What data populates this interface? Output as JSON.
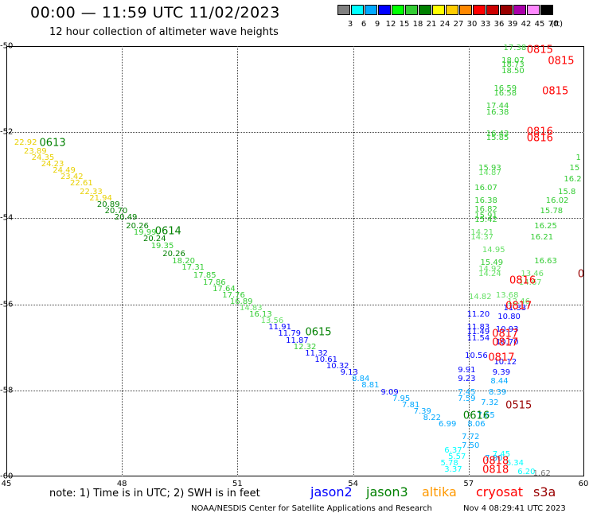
{
  "header": {
    "title": "00:00 — 11:59 UTC 11/02/2023",
    "subtitle": "12 hour collection of altimeter wave heights"
  },
  "colorscale": {
    "unit": "(ft)",
    "colors": [
      "#808080",
      "#00ffff",
      "#00a8ff",
      "#0000ff",
      "#00ff00",
      "#33cc33",
      "#008000",
      "#ffff00",
      "#ffcc00",
      "#ff8800",
      "#ff0000",
      "#cc0000",
      "#990000",
      "#aa00aa",
      "#ff88ff",
      "#000000"
    ],
    "labels": [
      "3",
      "6",
      "9",
      "12",
      "15",
      "18",
      "21",
      "24",
      "27",
      "30",
      "33",
      "36",
      "39",
      "42",
      "45",
      "70"
    ]
  },
  "axes": {
    "x_ticks": [
      "45",
      "48",
      "51",
      "54",
      "57",
      "60"
    ],
    "y_ticks": [
      "-50",
      "-52",
      "-54",
      "-56",
      "-58",
      "-60"
    ],
    "x_range": [
      45,
      60
    ],
    "y_range": [
      -60,
      -50
    ],
    "grid": true
  },
  "map_points": [
    {
      "lon": 45.5,
      "lat": -52.25,
      "text": "22.92",
      "color": "#e8d000"
    },
    {
      "lon": 45.75,
      "lat": -52.45,
      "text": "23.89",
      "color": "#e8d000"
    },
    {
      "lon": 45.95,
      "lat": -52.6,
      "text": "24.35",
      "color": "#e8d000"
    },
    {
      "lon": 46.2,
      "lat": -52.75,
      "text": "24.23",
      "color": "#e8d000"
    },
    {
      "lon": 46.5,
      "lat": -52.9,
      "text": "24.49",
      "color": "#e8d000"
    },
    {
      "lon": 46.7,
      "lat": -53.05,
      "text": "23.42",
      "color": "#e8d000"
    },
    {
      "lon": 46.95,
      "lat": -53.2,
      "text": "22.61",
      "color": "#e8d000"
    },
    {
      "lon": 47.2,
      "lat": -53.4,
      "text": "22.33",
      "color": "#e8d000"
    },
    {
      "lon": 47.45,
      "lat": -53.55,
      "text": "21.94",
      "color": "#e8d000"
    },
    {
      "lon": 47.65,
      "lat": -53.7,
      "text": "20.89",
      "color": "#008000"
    },
    {
      "lon": 47.85,
      "lat": -53.85,
      "text": "20.70",
      "color": "#008000"
    },
    {
      "lon": 48.1,
      "lat": -54.0,
      "text": "20.49",
      "color": "#008000"
    },
    {
      "lon": 48.4,
      "lat": -54.2,
      "text": "20.26",
      "color": "#008000"
    },
    {
      "lon": 48.6,
      "lat": -54.35,
      "text": "19.99",
      "color": "#33cc33"
    },
    {
      "lon": 48.85,
      "lat": -54.5,
      "text": "20.24",
      "color": "#008000"
    },
    {
      "lon": 49.05,
      "lat": -54.65,
      "text": "19.35",
      "color": "#33cc33"
    },
    {
      "lon": 49.35,
      "lat": -54.85,
      "text": "20.26",
      "color": "#008000"
    },
    {
      "lon": 49.6,
      "lat": -55.0,
      "text": "18.20",
      "color": "#33cc33"
    },
    {
      "lon": 49.85,
      "lat": -55.15,
      "text": "17.31",
      "color": "#33cc33"
    },
    {
      "lon": 50.15,
      "lat": -55.35,
      "text": "17.85",
      "color": "#33cc33"
    },
    {
      "lon": 50.4,
      "lat": -55.5,
      "text": "17.86",
      "color": "#33cc33"
    },
    {
      "lon": 50.65,
      "lat": -55.65,
      "text": "17.64",
      "color": "#33cc33"
    },
    {
      "lon": 50.9,
      "lat": -55.8,
      "text": "17.76",
      "color": "#33cc33"
    },
    {
      "lon": 51.1,
      "lat": -55.95,
      "text": "16.89",
      "color": "#33cc33"
    },
    {
      "lon": 51.35,
      "lat": -56.1,
      "text": "14.83",
      "color": "#66e066"
    },
    {
      "lon": 51.6,
      "lat": -56.25,
      "text": "16.13",
      "color": "#33cc33"
    },
    {
      "lon": 51.9,
      "lat": -56.4,
      "text": "13.56",
      "color": "#66e066"
    },
    {
      "lon": 52.1,
      "lat": -56.55,
      "text": "11.91",
      "color": "#0000ff"
    },
    {
      "lon": 52.35,
      "lat": -56.7,
      "text": "11.79",
      "color": "#0000ff"
    },
    {
      "lon": 52.55,
      "lat": -56.85,
      "text": "11.87",
      "color": "#0000ff"
    },
    {
      "lon": 52.75,
      "lat": -57.0,
      "text": "12.32",
      "color": "#33cc33"
    },
    {
      "lon": 53.05,
      "lat": -57.15,
      "text": "11.32",
      "color": "#0000ff"
    },
    {
      "lon": 53.3,
      "lat": -57.3,
      "text": "10.61",
      "color": "#0000ff"
    },
    {
      "lon": 53.6,
      "lat": -57.45,
      "text": "10.32",
      "color": "#0000ff"
    },
    {
      "lon": 53.9,
      "lat": -57.6,
      "text": "9.13",
      "color": "#0000ff"
    },
    {
      "lon": 54.2,
      "lat": -57.75,
      "text": "8.84",
      "color": "#00a8ff"
    },
    {
      "lon": 54.45,
      "lat": -57.9,
      "text": "8.81",
      "color": "#00a8ff"
    },
    {
      "lon": 54.95,
      "lat": -58.05,
      "text": "9.09",
      "color": "#0000ff"
    },
    {
      "lon": 55.25,
      "lat": -58.2,
      "text": "7.95",
      "color": "#00a8ff"
    },
    {
      "lon": 55.5,
      "lat": -58.35,
      "text": "7.81",
      "color": "#00a8ff"
    },
    {
      "lon": 55.8,
      "lat": -58.5,
      "text": "7.39",
      "color": "#00a8ff"
    },
    {
      "lon": 56.05,
      "lat": -58.65,
      "text": "8.22",
      "color": "#00a8ff"
    },
    {
      "lon": 56.45,
      "lat": -58.8,
      "text": "6.99",
      "color": "#00a8ff"
    },
    {
      "lon": 56.6,
      "lat": -59.4,
      "text": "6.37",
      "color": "#00ffff"
    },
    {
      "lon": 56.7,
      "lat": -59.55,
      "text": "5.57",
      "color": "#00ffff"
    },
    {
      "lon": 56.5,
      "lat": -59.7,
      "text": "5.78",
      "color": "#00ffff"
    },
    {
      "lon": 56.6,
      "lat": -59.85,
      "text": "3.37",
      "color": "#00ffff"
    },
    {
      "lon": 57.05,
      "lat": -59.3,
      "text": "7.50",
      "color": "#00a8ff"
    },
    {
      "lon": 57.05,
      "lat": -59.1,
      "text": "7.72",
      "color": "#00a8ff"
    },
    {
      "lon": 57.2,
      "lat": -58.8,
      "text": "8.06",
      "color": "#00a8ff"
    },
    {
      "lon": 57.45,
      "lat": -58.6,
      "text": "7.65",
      "color": "#00a8ff"
    },
    {
      "lon": 57.55,
      "lat": -58.3,
      "text": "7.32",
      "color": "#00a8ff"
    },
    {
      "lon": 56.95,
      "lat": -58.2,
      "text": "7.59",
      "color": "#00a8ff"
    },
    {
      "lon": 56.95,
      "lat": -58.05,
      "text": "7.45",
      "color": "#00a8ff"
    },
    {
      "lon": 57.75,
      "lat": -58.05,
      "text": "8.39",
      "color": "#00a8ff"
    },
    {
      "lon": 57.8,
      "lat": -57.8,
      "text": "8.44",
      "color": "#00a8ff"
    },
    {
      "lon": 57.85,
      "lat": -57.6,
      "text": "9.39",
      "color": "#0000ff"
    },
    {
      "lon": 56.95,
      "lat": -57.75,
      "text": "9.23",
      "color": "#0000ff"
    },
    {
      "lon": 56.95,
      "lat": -57.55,
      "text": "9.91",
      "color": "#0000ff"
    },
    {
      "lon": 57.95,
      "lat": -57.35,
      "text": "10.12",
      "color": "#0000ff"
    },
    {
      "lon": 57.2,
      "lat": -57.2,
      "text": "10.56",
      "color": "#0000ff"
    },
    {
      "lon": 57.25,
      "lat": -56.8,
      "text": "11.54",
      "color": "#0000ff"
    },
    {
      "lon": 57.25,
      "lat": -56.65,
      "text": "11.49",
      "color": "#0000ff"
    },
    {
      "lon": 57.25,
      "lat": -56.55,
      "text": "11.83",
      "color": "#0000ff"
    },
    {
      "lon": 57.25,
      "lat": -56.25,
      "text": "11.20",
      "color": "#0000ff"
    },
    {
      "lon": 58.05,
      "lat": -56.3,
      "text": "10.80",
      "color": "#0000ff"
    },
    {
      "lon": 58.0,
      "lat": -56.6,
      "text": "10.93",
      "color": "#0000ff"
    },
    {
      "lon": 58.0,
      "lat": -56.9,
      "text": "10.70",
      "color": "#0000ff"
    },
    {
      "lon": 58.2,
      "lat": -56.1,
      "text": "11.33",
      "color": "#0000ff"
    },
    {
      "lon": 57.3,
      "lat": -55.85,
      "text": "14.82",
      "color": "#66e066"
    },
    {
      "lon": 58.0,
      "lat": -55.8,
      "text": "13.68",
      "color": "#66e066"
    },
    {
      "lon": 58.3,
      "lat": -55.95,
      "text": "12.46",
      "color": "#66e066"
    },
    {
      "lon": 58.6,
      "lat": -55.5,
      "text": "14.67",
      "color": "#66e066"
    },
    {
      "lon": 58.65,
      "lat": -55.3,
      "text": "13.46",
      "color": "#66e066"
    },
    {
      "lon": 57.55,
      "lat": -55.2,
      "text": "14.92",
      "color": "#66e066"
    },
    {
      "lon": 57.55,
      "lat": -55.3,
      "text": "14.24",
      "color": "#66e066"
    },
    {
      "lon": 57.6,
      "lat": -55.05,
      "text": "15.49",
      "color": "#33cc33"
    },
    {
      "lon": 57.65,
      "lat": -54.75,
      "text": "14.95",
      "color": "#66e066"
    },
    {
      "lon": 57.35,
      "lat": -54.35,
      "text": "14.21",
      "color": "#66e066"
    },
    {
      "lon": 57.35,
      "lat": -54.45,
      "text": "14.37",
      "color": "#66e066"
    },
    {
      "lon": 57.45,
      "lat": -54.05,
      "text": "15.42",
      "color": "#33cc33"
    },
    {
      "lon": 57.45,
      "lat": -53.95,
      "text": "15.91",
      "color": "#33cc33"
    },
    {
      "lon": 57.45,
      "lat": -53.8,
      "text": "16.82",
      "color": "#33cc33"
    },
    {
      "lon": 57.45,
      "lat": -53.6,
      "text": "16.38",
      "color": "#33cc33"
    },
    {
      "lon": 57.45,
      "lat": -53.3,
      "text": "16.07",
      "color": "#33cc33"
    },
    {
      "lon": 57.55,
      "lat": -52.95,
      "text": "14.87",
      "color": "#66e066"
    },
    {
      "lon": 57.55,
      "lat": -52.85,
      "text": "15.93",
      "color": "#33cc33"
    },
    {
      "lon": 57.75,
      "lat": -52.15,
      "text": "15.85",
      "color": "#33cc33"
    },
    {
      "lon": 57.75,
      "lat": -52.05,
      "text": "16.43",
      "color": "#33cc33"
    },
    {
      "lon": 57.75,
      "lat": -51.55,
      "text": "16.38",
      "color": "#33cc33"
    },
    {
      "lon": 57.75,
      "lat": -51.4,
      "text": "17.44",
      "color": "#33cc33"
    },
    {
      "lon": 57.95,
      "lat": -51.1,
      "text": "16.58",
      "color": "#33cc33"
    },
    {
      "lon": 57.95,
      "lat": -51.0,
      "text": "16.59",
      "color": "#33cc33"
    },
    {
      "lon": 58.15,
      "lat": -50.6,
      "text": "18.50",
      "color": "#33cc33"
    },
    {
      "lon": 58.15,
      "lat": -50.45,
      "text": "18.73",
      "color": "#33cc33"
    },
    {
      "lon": 58.15,
      "lat": -50.35,
      "text": "18.07",
      "color": "#33cc33"
    },
    {
      "lon": 58.2,
      "lat": -50.05,
      "text": "17.38",
      "color": "#33cc33"
    },
    {
      "lon": 58.9,
      "lat": -54.45,
      "text": "16.21",
      "color": "#33cc33"
    },
    {
      "lon": 59.0,
      "lat": -54.2,
      "text": "16.25",
      "color": "#33cc33"
    },
    {
      "lon": 59.15,
      "lat": -53.85,
      "text": "15.78",
      "color": "#33cc33"
    },
    {
      "lon": 59.3,
      "lat": -53.6,
      "text": "16.02",
      "color": "#33cc33"
    },
    {
      "lon": 59.55,
      "lat": -53.4,
      "text": "15.8",
      "color": "#33cc33"
    },
    {
      "lon": 59.7,
      "lat": -53.1,
      "text": "16.2",
      "color": "#33cc33"
    },
    {
      "lon": 59.75,
      "lat": -52.85,
      "text": "15",
      "color": "#33cc33"
    },
    {
      "lon": 59.85,
      "lat": -52.6,
      "text": "1",
      "color": "#33cc33"
    },
    {
      "lon": 59.0,
      "lat": -55.0,
      "text": "16.63",
      "color": "#33cc33"
    },
    {
      "lon": 57.65,
      "lat": -59.6,
      "text": "7.80",
      "color": "#00a8ff"
    },
    {
      "lon": 57.85,
      "lat": -59.5,
      "text": "7.45",
      "color": "#00ffff"
    },
    {
      "lon": 58.2,
      "lat": -59.7,
      "text": "6.34",
      "color": "#00ffff"
    },
    {
      "lon": 58.5,
      "lat": -59.9,
      "text": "6.20",
      "color": "#00ffff"
    },
    {
      "lon": 58.9,
      "lat": -59.95,
      "text": "1.62",
      "color": "#808080"
    }
  ],
  "pass_labels": [
    {
      "lon": 46.2,
      "lat": -52.25,
      "text": "0613",
      "color": "#008000"
    },
    {
      "lon": 49.2,
      "lat": -54.3,
      "text": "0614",
      "color": "#008000"
    },
    {
      "lon": 53.1,
      "lat": -56.65,
      "text": "0615",
      "color": "#008000"
    },
    {
      "lon": 57.2,
      "lat": -58.6,
      "text": "0616",
      "color": "#008000"
    },
    {
      "lon": 58.85,
      "lat": -50.1,
      "text": "0815",
      "color": "#ff0000"
    },
    {
      "lon": 59.4,
      "lat": -50.35,
      "text": "0815",
      "color": "#ff0000"
    },
    {
      "lon": 59.25,
      "lat": -51.05,
      "text": "0815",
      "color": "#ff0000"
    },
    {
      "lon": 58.85,
      "lat": -52.0,
      "text": "0816",
      "color": "#ff0000"
    },
    {
      "lon": 58.85,
      "lat": -52.15,
      "text": "0816",
      "color": "#ff0000"
    },
    {
      "lon": 58.4,
      "lat": -55.45,
      "text": "0816",
      "color": "#ff0000"
    },
    {
      "lon": 58.3,
      "lat": -56.05,
      "text": "0817",
      "color": "#ff0000"
    },
    {
      "lon": 57.95,
      "lat": -56.7,
      "text": "0817",
      "color": "#ff0000"
    },
    {
      "lon": 57.95,
      "lat": -56.9,
      "text": "0817",
      "color": "#ff0000"
    },
    {
      "lon": 57.85,
      "lat": -57.25,
      "text": "0817",
      "color": "#ff0000"
    },
    {
      "lon": 57.7,
      "lat": -59.65,
      "text": "0818",
      "color": "#ff0000"
    },
    {
      "lon": 57.7,
      "lat": -59.85,
      "text": "0818",
      "color": "#ff0000"
    },
    {
      "lon": 58.3,
      "lat": -58.35,
      "text": "0515",
      "color": "#990000"
    },
    {
      "lon": 60.0,
      "lat": -55.3,
      "text": "0",
      "color": "#990000"
    }
  ],
  "footer": {
    "note": "note:  1) Time is in UTC;  2) SWH is in feet",
    "satellites": [
      {
        "name": "jason2",
        "color": "#0000ff"
      },
      {
        "name": "jason3",
        "color": "#008000"
      },
      {
        "name": "altika",
        "color": "#ff9900"
      },
      {
        "name": "cryosat",
        "color": "#ff0000"
      },
      {
        "name": "s3a",
        "color": "#990000"
      }
    ],
    "credit": "NOAA/NESDIS Center for Satellite Applications and Research",
    "timestamp": "Nov  4 08:29:41 UTC 2023"
  }
}
